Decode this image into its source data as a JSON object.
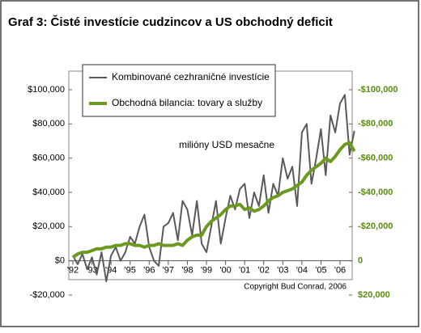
{
  "chart_data": {
    "type": "line",
    "title": "Graf 3: Čisté investície cudzincov a US obchodný deficit",
    "annotations": [
      "milióny USD mesačne",
      "Copyright Bud Conrad, 2006"
    ],
    "xlim": [
      1992,
      2006.75
    ],
    "xticks": [
      {
        "value": 1992,
        "label": "'92"
      },
      {
        "value": 1993,
        "label": "'93"
      },
      {
        "value": 1994,
        "label": "'94"
      },
      {
        "value": 1995,
        "label": "'95"
      },
      {
        "value": 1996,
        "label": "'96"
      },
      {
        "value": 1997,
        "label": "'97"
      },
      {
        "value": 1998,
        "label": "'98"
      },
      {
        "value": 1999,
        "label": "'99"
      },
      {
        "value": 2000,
        "label": "'00"
      },
      {
        "value": 2001,
        "label": "'01"
      },
      {
        "value": 2002,
        "label": "'02"
      },
      {
        "value": 2003,
        "label": "'03"
      },
      {
        "value": 2004,
        "label": "'04"
      },
      {
        "value": 2005,
        "label": "'05"
      },
      {
        "value": 2006,
        "label": "'06"
      }
    ],
    "ylim": [
      -20000,
      100000
    ],
    "yticks": [
      {
        "value": -20000,
        "label": "-$20,000"
      },
      {
        "value": 0,
        "label": "$0"
      },
      {
        "value": 20000,
        "label": "$20,000"
      },
      {
        "value": 40000,
        "label": "$40,000"
      },
      {
        "value": 60000,
        "label": "$60,000"
      },
      {
        "value": 80000,
        "label": "$80,000"
      },
      {
        "value": 100000,
        "label": "$100,000"
      }
    ],
    "y2lim": [
      20000,
      -100000
    ],
    "y2ticks": [
      {
        "value": 20000,
        "label": "$20,000"
      },
      0,
      {
        "value": -20000,
        "label": "-$20,000"
      },
      {
        "value": -40000,
        "label": "-$40,000"
      },
      {
        "value": -60000,
        "label": "-$60,000"
      },
      {
        "value": -80000,
        "label": "-$80,000"
      },
      {
        "value": -100000,
        "label": "-$100,000"
      }
    ],
    "x": [
      1992,
      1992.25,
      1992.5,
      1992.75,
      1993,
      1993.25,
      1993.5,
      1993.75,
      1994,
      1994.25,
      1994.5,
      1994.75,
      1995,
      1995.25,
      1995.5,
      1995.75,
      1996,
      1996.25,
      1996.5,
      1996.75,
      1997,
      1997.25,
      1997.5,
      1997.75,
      1998,
      1998.25,
      1998.5,
      1998.75,
      1999,
      1999.25,
      1999.5,
      1999.75,
      2000,
      2000.25,
      2000.5,
      2000.75,
      2001,
      2001.25,
      2001.5,
      2001.75,
      2002,
      2002.25,
      2002.5,
      2002.75,
      2003,
      2003.25,
      2003.5,
      2003.75,
      2004,
      2004.25,
      2004.5,
      2004.75,
      2005,
      2005.25,
      2005.5,
      2005.75,
      2006,
      2006.25,
      2006.5,
      2006.75
    ],
    "series": [
      {
        "name": "Kombinované cezhraničné investície",
        "color": "#5a5a5a",
        "values": [
          3000,
          -2000,
          4000,
          -5000,
          2000,
          -8000,
          5000,
          -12000,
          3000,
          8000,
          0,
          5000,
          14000,
          10000,
          20000,
          27000,
          8000,
          0,
          -3000,
          20000,
          22000,
          28000,
          12000,
          35000,
          30000,
          15000,
          35000,
          10000,
          5000,
          20000,
          35000,
          10000,
          25000,
          38000,
          30000,
          42000,
          45000,
          25000,
          40000,
          32000,
          50000,
          28000,
          45000,
          38000,
          60000,
          48000,
          55000,
          32000,
          75000,
          80000,
          45000,
          60000,
          77000,
          50000,
          85000,
          75000,
          92000,
          97000,
          62000,
          76000
        ]
      },
      {
        "name": "Obchodná bilancia: tovary a služby",
        "color": "#6a9a1f",
        "axis": "y2",
        "values": [
          -2000,
          -4000,
          -5000,
          -5000,
          -6000,
          -7000,
          -7000,
          -8000,
          -8000,
          -9000,
          -9000,
          -10000,
          -10000,
          -9000,
          -9000,
          -8000,
          -9000,
          -9000,
          -10000,
          -9000,
          -9000,
          -9000,
          -10000,
          -9000,
          -12000,
          -14000,
          -15000,
          -15000,
          -20000,
          -23000,
          -25000,
          -27000,
          -30000,
          -32000,
          -32000,
          -33000,
          -30000,
          -31000,
          -29000,
          -30000,
          -32000,
          -35000,
          -37000,
          -38000,
          -40000,
          -41000,
          -42000,
          -44000,
          -46000,
          -50000,
          -53000,
          -55000,
          -57000,
          -60000,
          -58000,
          -61000,
          -65000,
          -68000,
          -69000,
          -64000
        ]
      }
    ]
  }
}
